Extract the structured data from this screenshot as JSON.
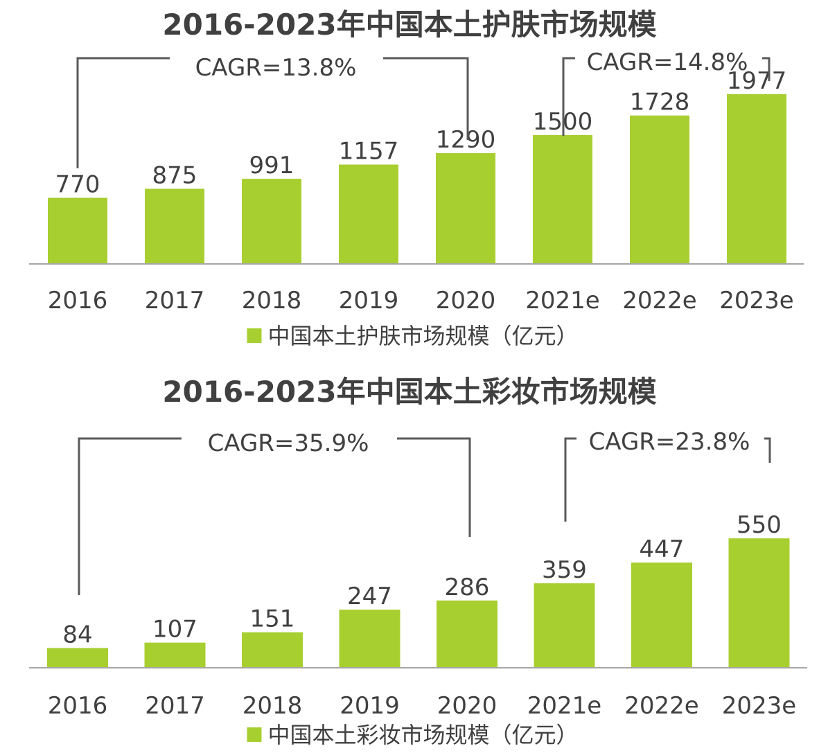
{
  "chart_data": [
    {
      "type": "bar",
      "title": "2016-2023年中国本土护肤市场规模",
      "categories": [
        "2016",
        "2017",
        "2018",
        "2019",
        "2020",
        "2021e",
        "2022e",
        "2023e"
      ],
      "series": [
        {
          "name": "中国本土护肤市场规模（亿元）",
          "values": [
            770,
            875,
            991,
            1157,
            1290,
            1500,
            1728,
            1977
          ]
        }
      ],
      "ylim": [
        0,
        2500
      ],
      "grid": false,
      "legend_position": "bottom-center",
      "bar_color": "#a8cf30",
      "annotations": [
        {
          "text": "CAGR=13.8%",
          "from": "2016",
          "to": "2020"
        },
        {
          "text": "CAGR=14.8%",
          "from": "2021e",
          "to": "2023e"
        }
      ]
    },
    {
      "type": "bar",
      "title": "2016-2023年中国本土彩妆市场规模",
      "categories": [
        "2016",
        "2017",
        "2018",
        "2019",
        "2020",
        "2021e",
        "2022e",
        "2023e"
      ],
      "series": [
        {
          "name": "中国本土彩妆市场规模（亿元）",
          "values": [
            84,
            107,
            151,
            247,
            286,
            359,
            447,
            550
          ]
        }
      ],
      "ylim": [
        0,
        730
      ],
      "grid": false,
      "legend_position": "bottom-center",
      "bar_color": "#a8cf30",
      "annotations": [
        {
          "text": "CAGR=35.9%",
          "from": "2016",
          "to": "2020"
        },
        {
          "text": "CAGR=23.8%",
          "from": "2021e",
          "to": "2023e"
        }
      ]
    }
  ]
}
